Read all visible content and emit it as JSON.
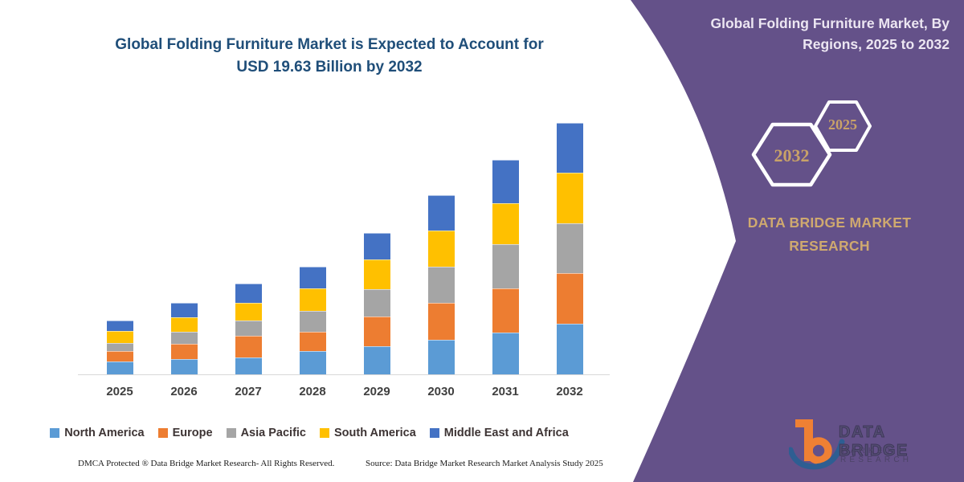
{
  "chart": {
    "title_line1": "Global Folding Furniture Market is Expected to Account for",
    "title_line2": "USD 19.63 Billion by 2032",
    "title_color": "#1f4e79"
  },
  "chart_data": {
    "type": "bar",
    "stacked": true,
    "categories": [
      "2025",
      "2026",
      "2027",
      "2028",
      "2029",
      "2030",
      "2031",
      "2032"
    ],
    "series": [
      {
        "name": "North America",
        "color": "#5B9BD5",
        "values": [
          1.0,
          1.21,
          1.32,
          1.8,
          2.19,
          2.68,
          3.24,
          3.95
        ]
      },
      {
        "name": "Europe",
        "color": "#ED7D31",
        "values": [
          0.83,
          1.15,
          1.67,
          1.55,
          2.3,
          2.92,
          3.45,
          3.97
        ]
      },
      {
        "name": "Asia Pacific",
        "color": "#A5A5A5",
        "values": [
          0.63,
          0.98,
          1.19,
          1.63,
          2.19,
          2.82,
          3.45,
          3.87
        ]
      },
      {
        "name": "South America",
        "color": "#FFC000",
        "values": [
          0.94,
          1.11,
          1.42,
          1.71,
          2.3,
          2.82,
          3.24,
          3.97
        ]
      },
      {
        "name": "Middle East and Africa",
        "color": "#4472C4",
        "values": [
          0.78,
          1.15,
          1.47,
          1.74,
          2.09,
          2.72,
          3.35,
          3.87
        ]
      }
    ],
    "totals_estimated": [
      4.18,
      5.6,
      7.07,
      8.43,
      11.07,
      13.96,
      16.73,
      19.63
    ],
    "unit": "USD Billion (estimated from bar heights; 2032 total labeled 19.63)",
    "title": "Global Folding Furniture Market is Expected to Account for USD 19.63 Billion by 2032",
    "xlabel": "",
    "ylabel": "",
    "grid": false,
    "legend_position": "bottom"
  },
  "panel": {
    "bg_color": "#645189",
    "title_line1": "Global Folding Furniture Market, By",
    "title_line2": "Regions, 2025 to 2032",
    "hex_large_year": "2032",
    "hex_small_year": "2025",
    "accent_gold": "#c9a268",
    "brand_line1": "DATA BRIDGE MARKET",
    "brand_line2": "RESEARCH"
  },
  "logo": {
    "text_main": "DATA BRIDGE",
    "text_sub": "MARKET RESEARCH",
    "orange": "#ef8034",
    "blue": "#2e5e92"
  },
  "footer": {
    "left": "DMCA Protected ® Data Bridge Market Research-  All Rights Reserved.",
    "right": "Source: Data Bridge Market Research  Market Analysis Study 2025"
  }
}
